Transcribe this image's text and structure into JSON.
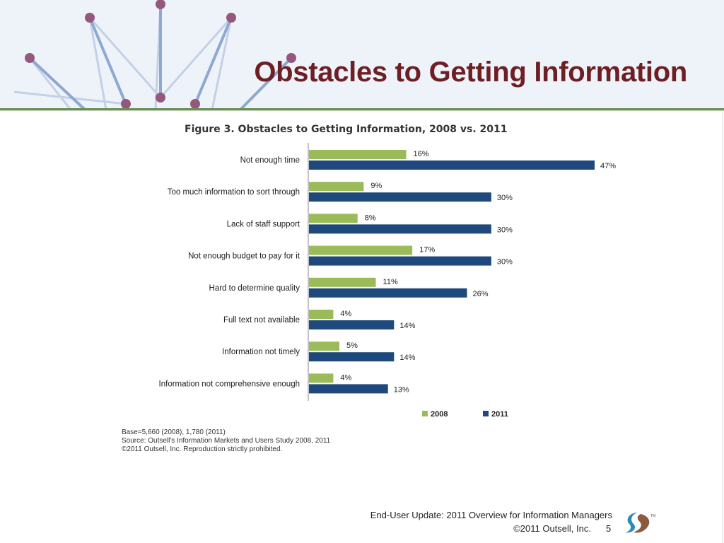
{
  "slide": {
    "title": "Obstacles to Getting Information",
    "page_number": "5"
  },
  "footer": {
    "line1": "End-User Update: 2011 Overview for Information Managers",
    "line2": "©2011 Outsell, Inc."
  },
  "notes": {
    "base": "Base=5,660 (2008), 1,780 (2011)",
    "source": "Source: Outsell's Information Markets and Users Study 2008, 2011",
    "copyright": "©2011 Outsell, Inc. Reproduction strictly prohibited."
  },
  "colors": {
    "title": "#6d1f24",
    "series_2008": "#9bbb59",
    "series_2011": "#1f497d",
    "header_bg": "#eef3fa"
  },
  "chart_data": {
    "type": "bar",
    "orientation": "horizontal",
    "title": "Figure 3. Obstacles to Getting Information, 2008 vs. 2011",
    "categories": [
      "Not enough time",
      "Too much information to sort through",
      "Lack of staff support",
      "Not enough budget to pay for it",
      "Hard to determine quality",
      "Full text not available",
      "Information not timely",
      "Information not comprehensive enough"
    ],
    "series": [
      {
        "name": "2008",
        "values": [
          16,
          9,
          8,
          17,
          11,
          4,
          5,
          4
        ],
        "labels": [
          "16%",
          "9%",
          "8%",
          "17%",
          "11%",
          "4%",
          "5%",
          "4%"
        ]
      },
      {
        "name": "2011",
        "values": [
          47,
          30,
          30,
          30,
          26,
          14,
          14,
          13
        ],
        "labels": [
          "47%",
          "30%",
          "30%",
          "30%",
          "26%",
          "14%",
          "14%",
          "13%"
        ]
      }
    ],
    "xlim": [
      0,
      47
    ],
    "legend": "bottom-right",
    "grid": false
  }
}
